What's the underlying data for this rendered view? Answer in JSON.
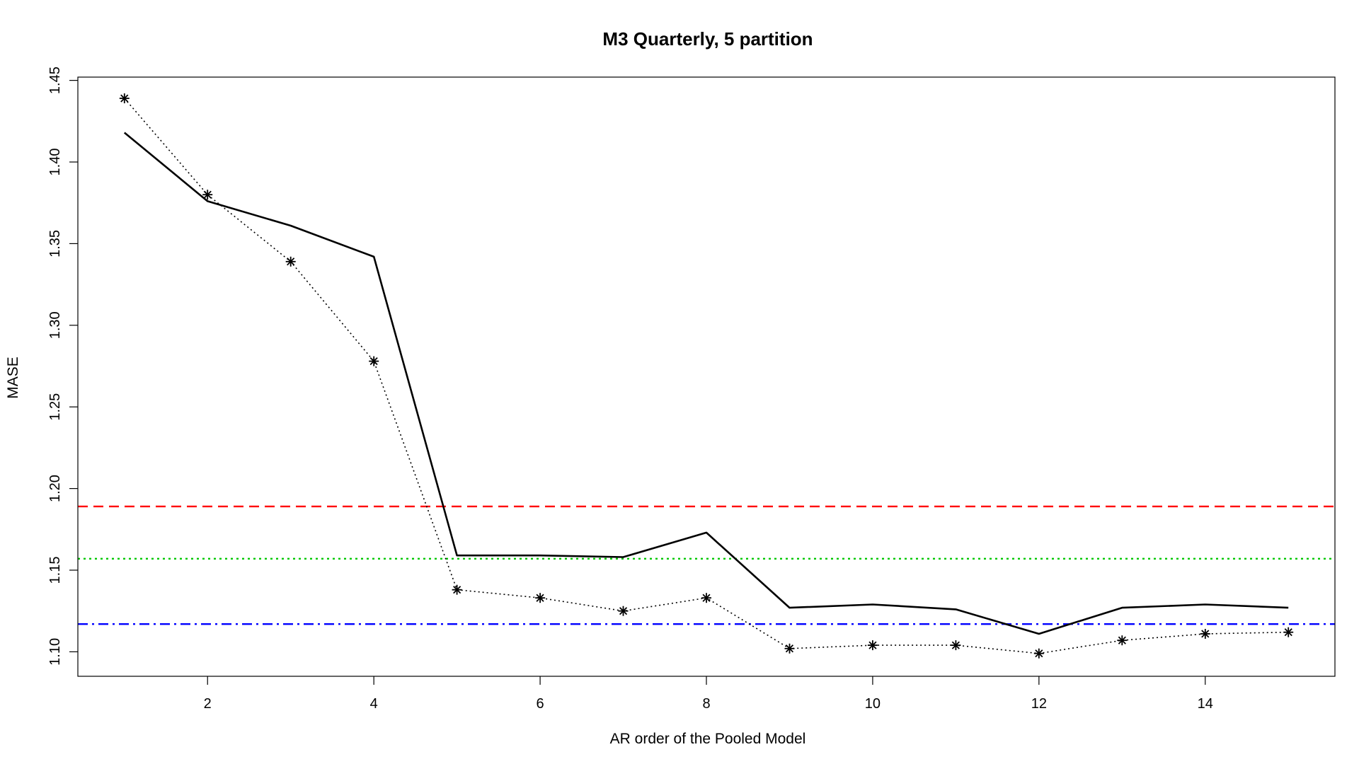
{
  "chart_data": {
    "type": "line",
    "title": "M3 Quarterly, 5 partition",
    "xlabel": "AR order of the Pooled Model",
    "ylabel": "MASE",
    "xlim": [
      0.44,
      15.56
    ],
    "ylim": [
      1.085,
      1.452
    ],
    "x_ticks": [
      2,
      4,
      6,
      8,
      10,
      12,
      14
    ],
    "y_ticks": [
      1.1,
      1.15,
      1.2,
      1.25,
      1.3,
      1.35,
      1.4,
      1.45
    ],
    "y_tick_labels": [
      "1.10",
      "1.15",
      "1.20",
      "1.25",
      "1.30",
      "1.35",
      "1.40",
      "1.45"
    ],
    "x": [
      1,
      2,
      3,
      4,
      5,
      6,
      7,
      8,
      9,
      10,
      11,
      12,
      13,
      14,
      15
    ],
    "series": [
      {
        "name": "solid",
        "style": "solid",
        "color": "#000000",
        "values": [
          1.418,
          1.376,
          1.361,
          1.342,
          1.159,
          1.159,
          1.158,
          1.173,
          1.127,
          1.129,
          1.126,
          1.111,
          1.127,
          1.129,
          1.127
        ]
      },
      {
        "name": "dotted-star",
        "style": "dotted",
        "marker": "star",
        "color": "#000000",
        "values": [
          1.439,
          1.38,
          1.339,
          1.278,
          1.138,
          1.133,
          1.125,
          1.133,
          1.102,
          1.104,
          1.104,
          1.099,
          1.107,
          1.111,
          1.112
        ]
      }
    ],
    "hlines": [
      {
        "name": "red-dashed",
        "value": 1.189,
        "color": "#ff0000",
        "style": "dashed"
      },
      {
        "name": "green-dotted",
        "value": 1.157,
        "color": "#00c800",
        "style": "dotted"
      },
      {
        "name": "blue-dashdot",
        "value": 1.117,
        "color": "#0000ff",
        "style": "dashdot"
      }
    ],
    "grid": false
  }
}
